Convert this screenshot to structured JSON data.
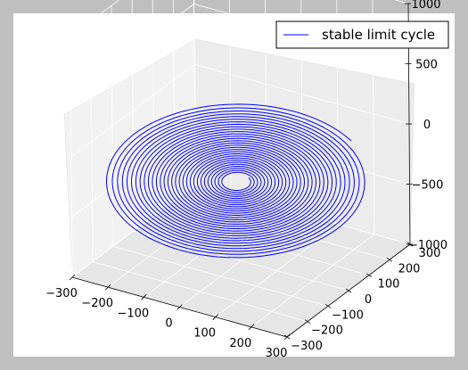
{
  "chart_data": {
    "type": "line",
    "projection": "3d",
    "series": [
      {
        "name": "stable limit cycle",
        "color": "#0000ff",
        "shape": "inward spiral in the z=0 plane",
        "outer_radius": 300,
        "inner_radius": 30,
        "turns": 30,
        "z": 0
      }
    ],
    "legend": {
      "placement": "top-right",
      "entries": [
        "stable limit cycle"
      ]
    },
    "axes": {
      "x": {
        "range": [
          -300,
          300
        ],
        "ticks": [
          -300,
          -200,
          -100,
          0,
          100,
          200,
          300
        ]
      },
      "y": {
        "range": [
          -300,
          300
        ],
        "ticks": [
          -300,
          -200,
          -100,
          0,
          100,
          200,
          300
        ]
      },
      "z": {
        "range": [
          -1000,
          1000
        ],
        "ticks": [
          -1000,
          -500,
          0,
          500,
          1000
        ]
      }
    },
    "grid": true,
    "colors": {
      "pane": "#f2f2f2",
      "figure_bg": "#ffffff",
      "outer_bg": "#bfbfbf",
      "line": "#0000ff"
    }
  }
}
